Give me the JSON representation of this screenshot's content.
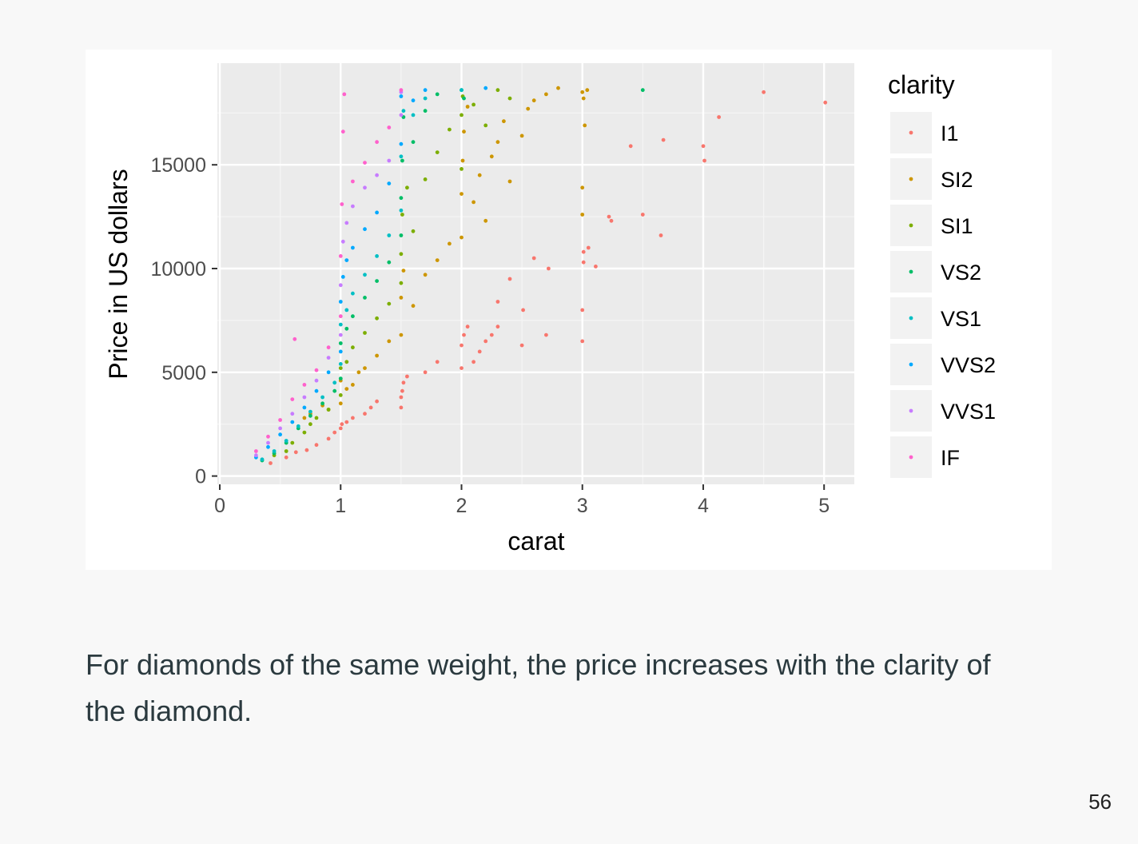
{
  "chart_data": {
    "type": "scatter",
    "title": "",
    "xlabel": "carat",
    "ylabel": "Price in US dollars",
    "xlim": [
      -0.02,
      5.25
    ],
    "ylim": [
      -400,
      19900
    ],
    "x_ticks": [
      0,
      1,
      2,
      3,
      4,
      5
    ],
    "x_tick_labels": [
      "0",
      "1",
      "2",
      "3",
      "4",
      "5"
    ],
    "y_ticks": [
      0,
      5000,
      10000,
      15000
    ],
    "y_tick_labels": [
      "0",
      "5000",
      "10000",
      "15000"
    ],
    "grid": true,
    "panel_background": "#ebebeb",
    "legend": {
      "title": "clarity",
      "placement": "right"
    },
    "series": [
      {
        "name": "I1",
        "color": "#f8766d",
        "points": [
          [
            0.42,
            620
          ],
          [
            0.55,
            900
          ],
          [
            0.63,
            1150
          ],
          [
            0.72,
            1250
          ],
          [
            0.8,
            1500
          ],
          [
            0.9,
            1800
          ],
          [
            0.95,
            2100
          ],
          [
            1.0,
            2300
          ],
          [
            1.01,
            2500
          ],
          [
            1.05,
            2600
          ],
          [
            1.1,
            2800
          ],
          [
            1.2,
            3000
          ],
          [
            1.25,
            3300
          ],
          [
            1.3,
            3600
          ],
          [
            1.5,
            3300
          ],
          [
            1.5,
            3800
          ],
          [
            1.51,
            4100
          ],
          [
            1.52,
            4500
          ],
          [
            1.55,
            4800
          ],
          [
            1.7,
            5000
          ],
          [
            1.8,
            5500
          ],
          [
            2.0,
            5200
          ],
          [
            2.0,
            6300
          ],
          [
            2.02,
            6800
          ],
          [
            2.05,
            7200
          ],
          [
            2.1,
            5500
          ],
          [
            2.15,
            6000
          ],
          [
            2.2,
            6500
          ],
          [
            2.25,
            6800
          ],
          [
            2.3,
            7200
          ],
          [
            2.3,
            8400
          ],
          [
            2.4,
            9500
          ],
          [
            2.5,
            6300
          ],
          [
            2.51,
            8000
          ],
          [
            2.6,
            10500
          ],
          [
            2.7,
            6800
          ],
          [
            2.72,
            10000
          ],
          [
            3.0,
            6500
          ],
          [
            3.0,
            8000
          ],
          [
            3.01,
            10300
          ],
          [
            3.01,
            10800
          ],
          [
            3.05,
            11000
          ],
          [
            3.11,
            10100
          ],
          [
            3.22,
            12500
          ],
          [
            3.24,
            12300
          ],
          [
            3.4,
            15900
          ],
          [
            3.5,
            12600
          ],
          [
            3.65,
            11600
          ],
          [
            3.67,
            16200
          ],
          [
            4.0,
            15900
          ],
          [
            4.01,
            15200
          ],
          [
            4.13,
            17300
          ],
          [
            4.5,
            18500
          ],
          [
            5.01,
            18000
          ]
        ]
      },
      {
        "name": "SI2",
        "color": "#cd9600",
        "points": [
          [
            0.7,
            2800
          ],
          [
            0.75,
            3000
          ],
          [
            0.85,
            3400
          ],
          [
            0.9,
            3200
          ],
          [
            1.0,
            3500
          ],
          [
            1.0,
            4600
          ],
          [
            1.05,
            4200
          ],
          [
            1.1,
            4400
          ],
          [
            1.15,
            5000
          ],
          [
            1.2,
            5200
          ],
          [
            1.3,
            5800
          ],
          [
            1.4,
            6500
          ],
          [
            1.5,
            6800
          ],
          [
            1.5,
            8600
          ],
          [
            1.52,
            9900
          ],
          [
            1.6,
            8200
          ],
          [
            1.7,
            9700
          ],
          [
            1.8,
            10400
          ],
          [
            1.9,
            11200
          ],
          [
            2.0,
            11500
          ],
          [
            2.0,
            13600
          ],
          [
            2.01,
            15200
          ],
          [
            2.02,
            16600
          ],
          [
            2.05,
            17800
          ],
          [
            2.1,
            13200
          ],
          [
            2.15,
            14500
          ],
          [
            2.2,
            12300
          ],
          [
            2.25,
            15400
          ],
          [
            2.3,
            16100
          ],
          [
            2.35,
            17100
          ],
          [
            2.4,
            14200
          ],
          [
            2.5,
            16400
          ],
          [
            2.55,
            17700
          ],
          [
            2.6,
            18100
          ],
          [
            2.7,
            18400
          ],
          [
            2.8,
            18700
          ],
          [
            3.0,
            18500
          ],
          [
            3.01,
            18200
          ],
          [
            3.02,
            16900
          ],
          [
            3.04,
            18600
          ],
          [
            3.0,
            12600
          ],
          [
            3.0,
            13900
          ]
        ]
      },
      {
        "name": "SI1",
        "color": "#7cae00",
        "points": [
          [
            0.45,
            1000
          ],
          [
            0.55,
            1200
          ],
          [
            0.6,
            1600
          ],
          [
            0.7,
            2100
          ],
          [
            0.75,
            2500
          ],
          [
            0.8,
            2800
          ],
          [
            0.9,
            3200
          ],
          [
            1.0,
            3900
          ],
          [
            1.0,
            5200
          ],
          [
            1.05,
            5500
          ],
          [
            1.1,
            6200
          ],
          [
            1.2,
            6900
          ],
          [
            1.3,
            7600
          ],
          [
            1.4,
            8300
          ],
          [
            1.5,
            9300
          ],
          [
            1.5,
            10700
          ],
          [
            1.51,
            12600
          ],
          [
            1.55,
            13900
          ],
          [
            1.6,
            11800
          ],
          [
            1.7,
            14300
          ],
          [
            1.8,
            15600
          ],
          [
            1.9,
            16700
          ],
          [
            2.0,
            14800
          ],
          [
            2.0,
            17400
          ],
          [
            2.01,
            18300
          ],
          [
            2.1,
            17900
          ],
          [
            2.2,
            16900
          ],
          [
            2.3,
            18600
          ],
          [
            2.4,
            18200
          ]
        ]
      },
      {
        "name": "VS2",
        "color": "#00be67",
        "points": [
          [
            0.35,
            750
          ],
          [
            0.45,
            1100
          ],
          [
            0.55,
            1600
          ],
          [
            0.65,
            2300
          ],
          [
            0.75,
            2900
          ],
          [
            0.85,
            3500
          ],
          [
            0.95,
            4100
          ],
          [
            1.0,
            4700
          ],
          [
            1.0,
            6400
          ],
          [
            1.05,
            7100
          ],
          [
            1.1,
            7700
          ],
          [
            1.2,
            8600
          ],
          [
            1.3,
            9400
          ],
          [
            1.4,
            10300
          ],
          [
            1.5,
            11600
          ],
          [
            1.5,
            13400
          ],
          [
            1.51,
            15200
          ],
          [
            1.52,
            17300
          ],
          [
            1.6,
            16100
          ],
          [
            1.7,
            17600
          ],
          [
            1.8,
            18400
          ],
          [
            2.0,
            18600
          ],
          [
            2.02,
            18200
          ],
          [
            3.5,
            18600
          ]
        ]
      },
      {
        "name": "VS1",
        "color": "#00bfc4",
        "points": [
          [
            0.35,
            800
          ],
          [
            0.45,
            1200
          ],
          [
            0.55,
            1700
          ],
          [
            0.65,
            2400
          ],
          [
            0.75,
            3100
          ],
          [
            0.85,
            3800
          ],
          [
            0.95,
            4500
          ],
          [
            1.0,
            5400
          ],
          [
            1.0,
            7300
          ],
          [
            1.05,
            8000
          ],
          [
            1.1,
            8800
          ],
          [
            1.2,
            9700
          ],
          [
            1.3,
            10600
          ],
          [
            1.4,
            11600
          ],
          [
            1.5,
            12800
          ],
          [
            1.5,
            15400
          ],
          [
            1.52,
            17600
          ],
          [
            1.6,
            17400
          ],
          [
            1.7,
            18200
          ],
          [
            2.0,
            18600
          ]
        ]
      },
      {
        "name": "VVS2",
        "color": "#00a9ff",
        "points": [
          [
            0.3,
            900
          ],
          [
            0.4,
            1400
          ],
          [
            0.5,
            2000
          ],
          [
            0.6,
            2600
          ],
          [
            0.7,
            3300
          ],
          [
            0.8,
            4100
          ],
          [
            0.9,
            5000
          ],
          [
            1.0,
            6000
          ],
          [
            1.0,
            8400
          ],
          [
            1.02,
            9600
          ],
          [
            1.05,
            10400
          ],
          [
            1.1,
            11000
          ],
          [
            1.2,
            11900
          ],
          [
            1.3,
            12700
          ],
          [
            1.4,
            14100
          ],
          [
            1.5,
            16000
          ],
          [
            1.5,
            18300
          ],
          [
            1.6,
            18100
          ],
          [
            1.7,
            18600
          ],
          [
            2.2,
            18700
          ]
        ]
      },
      {
        "name": "VVS1",
        "color": "#c77cff",
        "points": [
          [
            0.3,
            1000
          ],
          [
            0.4,
            1600
          ],
          [
            0.5,
            2300
          ],
          [
            0.6,
            3000
          ],
          [
            0.7,
            3800
          ],
          [
            0.8,
            4600
          ],
          [
            0.9,
            5700
          ],
          [
            1.0,
            6800
          ],
          [
            1.0,
            9200
          ],
          [
            1.02,
            11300
          ],
          [
            1.05,
            12200
          ],
          [
            1.1,
            13000
          ],
          [
            1.2,
            13900
          ],
          [
            1.3,
            14500
          ],
          [
            1.4,
            15200
          ],
          [
            1.5,
            17400
          ],
          [
            1.5,
            18500
          ]
        ]
      },
      {
        "name": "IF",
        "color": "#ff61cc",
        "points": [
          [
            0.3,
            1200
          ],
          [
            0.4,
            1900
          ],
          [
            0.5,
            2700
          ],
          [
            0.6,
            3700
          ],
          [
            0.62,
            6600
          ],
          [
            0.7,
            4400
          ],
          [
            0.8,
            5100
          ],
          [
            0.9,
            6200
          ],
          [
            1.0,
            7700
          ],
          [
            1.0,
            10600
          ],
          [
            1.01,
            13100
          ],
          [
            1.02,
            16600
          ],
          [
            1.03,
            18400
          ],
          [
            1.1,
            14200
          ],
          [
            1.2,
            15100
          ],
          [
            1.3,
            16100
          ],
          [
            1.4,
            16800
          ],
          [
            1.5,
            18600
          ]
        ]
      }
    ]
  },
  "caption": "For diamonds of the same weight, the price increases with the clarity of the diamond.",
  "page_number": "56"
}
